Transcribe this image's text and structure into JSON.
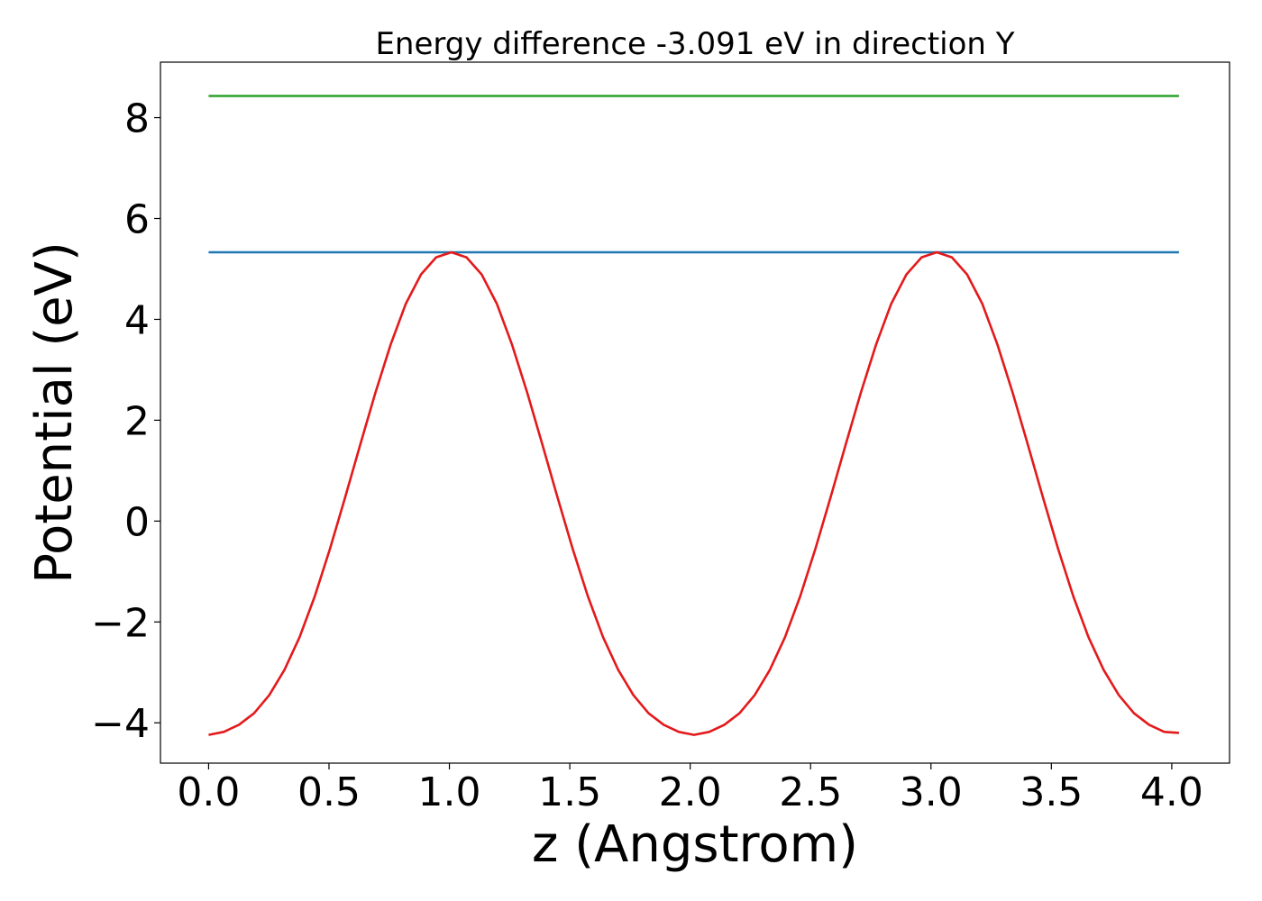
{
  "chart_data": {
    "type": "line",
    "title": "Energy difference -3.091 eV in direction Y",
    "xlabel": "z (Angstrom)",
    "ylabel": "Potential (eV)",
    "xlim": [
      -0.2,
      4.24
    ],
    "ylim": [
      -4.8,
      9.1
    ],
    "x_ticks": [
      0.0,
      0.5,
      1.0,
      1.5,
      2.0,
      2.5,
      3.0,
      3.5,
      4.0
    ],
    "x_tick_labels": [
      "0.0",
      "0.5",
      "1.0",
      "1.5",
      "2.0",
      "2.5",
      "3.0",
      "3.5",
      "4.0"
    ],
    "y_ticks": [
      -4,
      -2,
      0,
      2,
      4,
      6,
      8
    ],
    "y_tick_labels": [
      "−4",
      "−2",
      "0",
      "2",
      "4",
      "6",
      "8"
    ],
    "grid": false,
    "legend": "none",
    "series": [
      {
        "color": "#2ca02c",
        "x": [
          0.0,
          4.03
        ],
        "y": [
          8.43,
          8.43
        ]
      },
      {
        "color": "#1f77b4",
        "x": [
          0.0,
          4.03
        ],
        "y": [
          5.33,
          5.33
        ]
      },
      {
        "color": "#e31a1c",
        "x": [
          0.0,
          0.063,
          0.126,
          0.189,
          0.252,
          0.315,
          0.378,
          0.441,
          0.504,
          0.567,
          0.63,
          0.693,
          0.756,
          0.819,
          0.882,
          0.945,
          1.008,
          1.071,
          1.134,
          1.197,
          1.26,
          1.323,
          1.386,
          1.449,
          1.512,
          1.575,
          1.638,
          1.701,
          1.764,
          1.827,
          1.89,
          1.953,
          2.016,
          2.079,
          2.142,
          2.205,
          2.268,
          2.331,
          2.394,
          2.457,
          2.52,
          2.583,
          2.646,
          2.709,
          2.772,
          2.835,
          2.898,
          2.961,
          3.024,
          3.087,
          3.15,
          3.213,
          3.276,
          3.339,
          3.402,
          3.465,
          3.528,
          3.591,
          3.654,
          3.717,
          3.78,
          3.843,
          3.906,
          3.969,
          4.03
        ],
        "y": [
          -4.24,
          -4.18,
          -4.04,
          -3.81,
          -3.45,
          -2.95,
          -2.3,
          -1.49,
          -0.55,
          0.47,
          1.52,
          2.55,
          3.5,
          4.31,
          4.89,
          5.23,
          5.33,
          5.23,
          4.89,
          4.31,
          3.5,
          2.55,
          1.52,
          0.47,
          -0.55,
          -1.49,
          -2.3,
          -2.95,
          -3.45,
          -3.81,
          -4.04,
          -4.18,
          -4.24,
          -4.18,
          -4.04,
          -3.81,
          -3.45,
          -2.95,
          -2.3,
          -1.49,
          -0.55,
          0.47,
          1.52,
          2.55,
          3.5,
          4.31,
          4.89,
          5.23,
          5.33,
          5.23,
          4.89,
          4.31,
          3.5,
          2.55,
          1.52,
          0.47,
          -0.55,
          -1.49,
          -2.3,
          -2.95,
          -3.45,
          -3.81,
          -4.04,
          -4.18,
          -4.2
        ]
      }
    ]
  }
}
